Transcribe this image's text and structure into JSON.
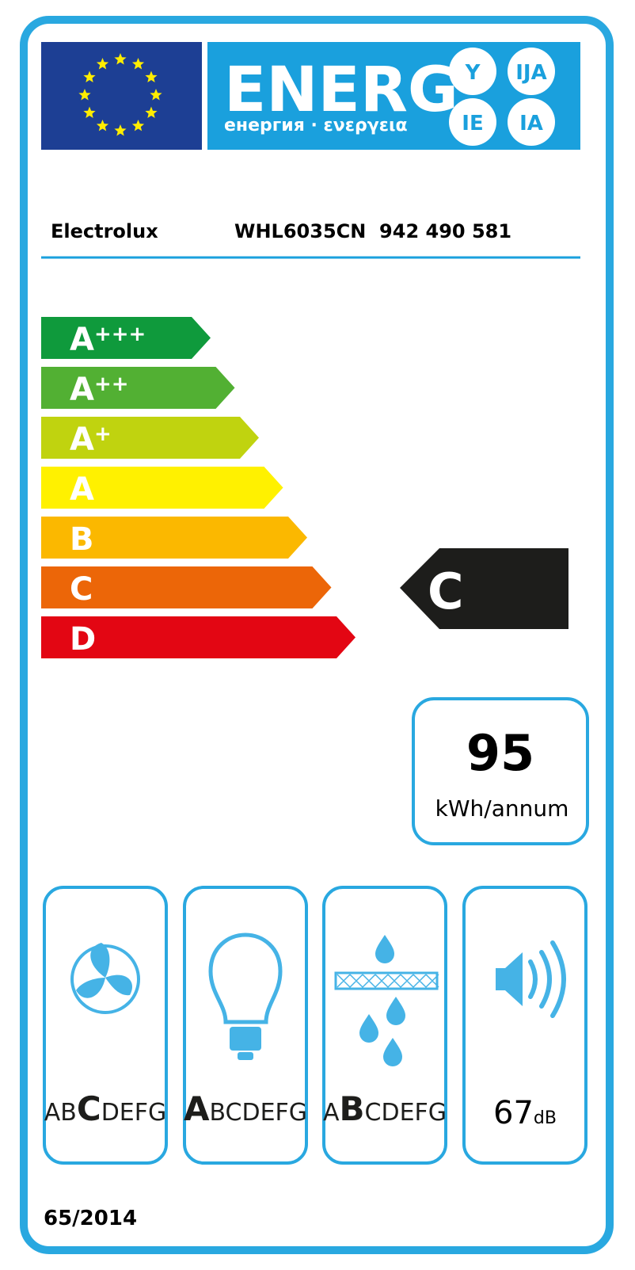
{
  "header": {
    "word": "ENERG",
    "subtitle": "енергия · ενεργεια",
    "suffixes": [
      "Y",
      "IJA",
      "IE",
      "IA"
    ]
  },
  "supplier": "Electrolux",
  "model": "WHL6035CN  942 490 581",
  "classes": [
    {
      "letter": "A",
      "plus": "+++",
      "color": "#0f9a3c"
    },
    {
      "letter": "A",
      "plus": "++",
      "color": "#52b033"
    },
    {
      "letter": "A",
      "plus": "+",
      "color": "#c0d30f"
    },
    {
      "letter": "A",
      "color": "#fff100"
    },
    {
      "letter": "B",
      "color": "#fbb800"
    },
    {
      "letter": "C",
      "color": "#ec6608"
    },
    {
      "letter": "D",
      "color": "#e30613"
    }
  ],
  "rating": "C",
  "consumption": {
    "value": "95",
    "unit": "kWh/annum"
  },
  "boxes": [
    {
      "before": "AB",
      "selected": "C",
      "after": "DEFG"
    },
    {
      "selected": "A",
      "after": "BCDEFG"
    },
    {
      "before": "A",
      "selected": "B",
      "after": "CDEFG"
    }
  ],
  "noise": {
    "value": "67",
    "unit": "dB"
  },
  "regulation": "65/2014"
}
